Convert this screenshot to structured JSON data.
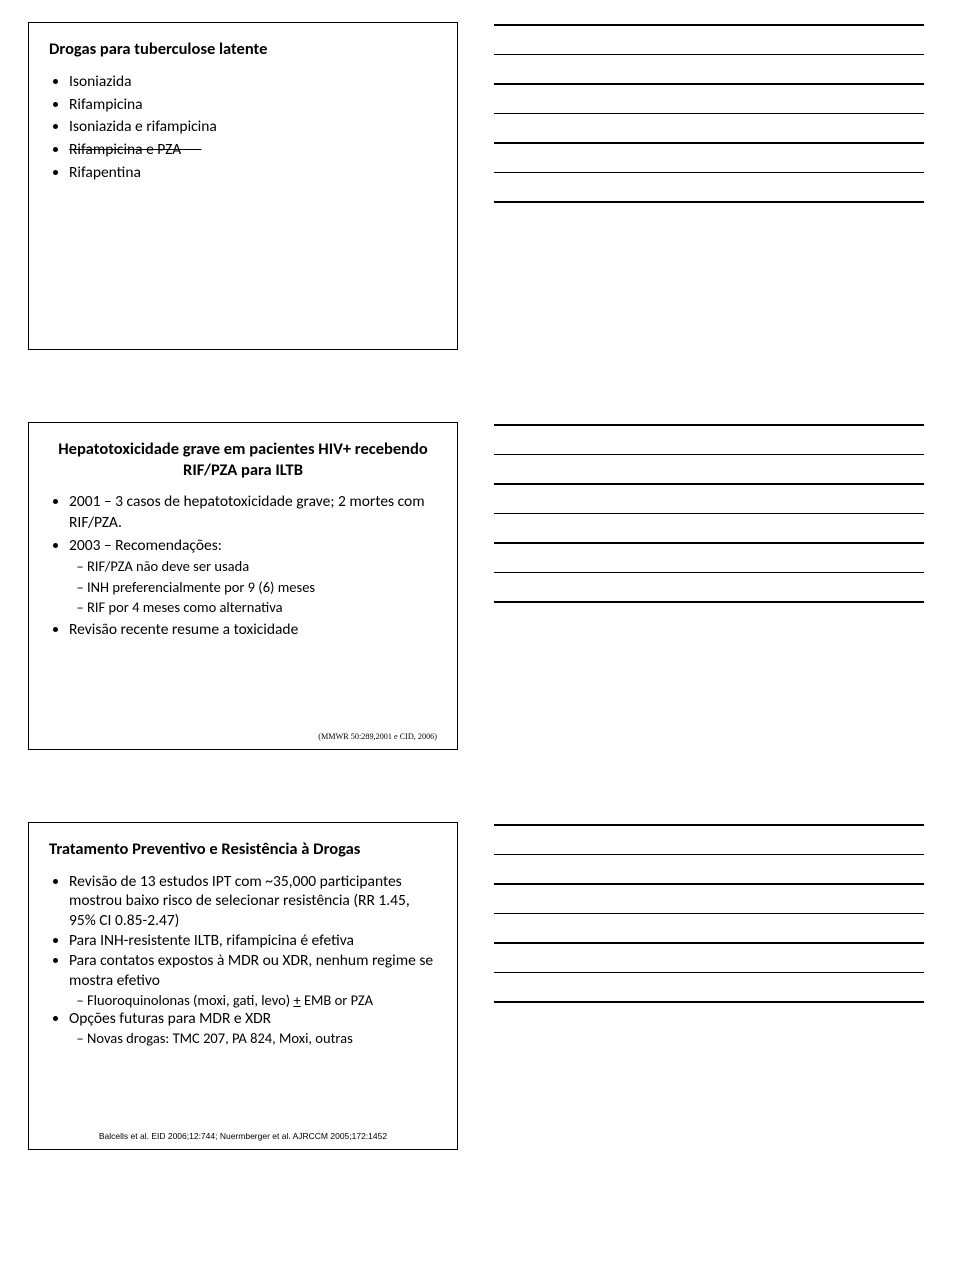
{
  "slide1": {
    "title": "Drogas para tuberculose latente",
    "items": [
      {
        "text": "Isoniazida",
        "strike": false
      },
      {
        "text": "Rifampicina",
        "strike": false
      },
      {
        "text": "Isoniazida e rifampicina",
        "strike": false
      },
      {
        "text": "Rifampicina e PZA",
        "strike": true
      },
      {
        "text": "Rifapentina",
        "strike": false
      }
    ]
  },
  "slide2": {
    "title": "Hepatotoxicidade grave em pacientes HIV+ recebendo RIF/PZA para ILTB",
    "item1": "2001 – 3 casos de hepatotoxicidade grave; 2 mortes com RIF/PZA.",
    "item2": "2003 – Recomendações:",
    "sub2a": "RIF/PZA não deve ser usada",
    "sub2b": "INH preferencialmente por 9 (6) meses",
    "sub2c": "RIF por 4 meses como alternativa",
    "item3": "Revisão recente resume a toxicidade",
    "citation": "(MMWR 50:289,2001 e CID, 2006)"
  },
  "slide3": {
    "title": "Tratamento Preventivo e Resistência à Drogas",
    "item1": "Revisão de 13 estudos IPT com ~35,000 participantes mostrou baixo risco de selecionar resistência (RR 1.45, 95% CI 0.85-2.47)",
    "item2": "Para INH-resistente ILTB, rifampicina é efetiva",
    "item3": "Para contatos expostos à MDR ou XDR, nenhum regime se mostra efetivo",
    "sub3a": "Fluoroquinolonas (moxi, gati, levo) + EMB or PZA",
    "item4": "Opções futuras para MDR e XDR",
    "sub4a": "Novas drogas: TMC 207, PA 824, Moxi, outras",
    "citation": "Balcells et al. EID 2006;12:744; Nuermberger et al. AJRCCM 2005;172:1452"
  },
  "notes_count": 7,
  "colors": {
    "background": "#ffffff",
    "text": "#000000",
    "border": "#000000",
    "line": "#000000"
  }
}
